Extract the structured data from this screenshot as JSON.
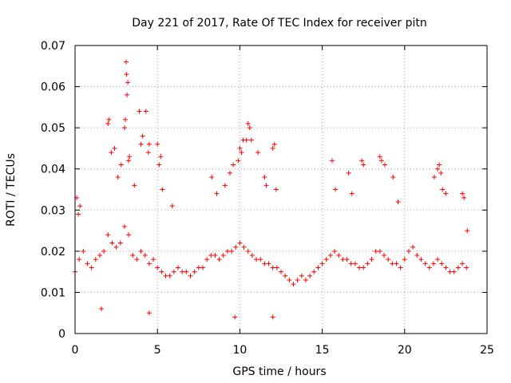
{
  "chart_data": {
    "type": "scatter",
    "title": "Day 221 of 2017, Rate Of TEC Index for receiver pitn",
    "xlabel": "GPS time / hours",
    "ylabel": "ROTI / TECUs",
    "xlim": [
      0,
      25
    ],
    "ylim": [
      0,
      0.07
    ],
    "x_ticks": [
      "0",
      "5",
      "10",
      "15",
      "20",
      "25"
    ],
    "y_ticks": [
      "0",
      "0.01",
      "0.02",
      "0.03",
      "0.04",
      "0.05",
      "0.06",
      "0.07"
    ],
    "grid": true,
    "legend": "none",
    "marker": "+",
    "color": "#ff0000",
    "series": [
      {
        "x": [
          0.0,
          0.25,
          0.5,
          0.75,
          1.0,
          1.25,
          1.5,
          1.75,
          2.0,
          2.25,
          2.5,
          2.75,
          3.0,
          3.25,
          3.5,
          3.75,
          4.0,
          4.25,
          4.5,
          4.75,
          5.0,
          5.25,
          5.5,
          5.75,
          6.0,
          6.25,
          6.5,
          6.75,
          7.0,
          7.25,
          7.5,
          7.75,
          8.0,
          8.25,
          8.5,
          8.75,
          9.0,
          9.25,
          9.5,
          9.75,
          10.0,
          10.25,
          10.5,
          10.75,
          11.0,
          11.25,
          11.5,
          11.75,
          12.0,
          12.25,
          12.5,
          12.75,
          13.0,
          13.25,
          13.5,
          13.75,
          14.0,
          14.25,
          14.5,
          14.75,
          15.0,
          15.25,
          15.5,
          15.75,
          16.0,
          16.25,
          16.5,
          16.75,
          17.0,
          17.25,
          17.5,
          17.75,
          18.0,
          18.25,
          18.5,
          18.75,
          19.0,
          19.25,
          19.5,
          19.75,
          20.0,
          20.25,
          20.5,
          20.75,
          21.0,
          21.25,
          21.5,
          21.75,
          22.0,
          22.25,
          22.5,
          22.75,
          23.0,
          23.25,
          23.5,
          23.75
        ],
        "y": [
          0.015,
          0.018,
          0.02,
          0.017,
          0.016,
          0.018,
          0.019,
          0.02,
          0.024,
          0.022,
          0.021,
          0.022,
          0.026,
          0.024,
          0.019,
          0.018,
          0.02,
          0.019,
          0.017,
          0.018,
          0.016,
          0.015,
          0.014,
          0.014,
          0.015,
          0.016,
          0.015,
          0.015,
          0.014,
          0.015,
          0.016,
          0.016,
          0.018,
          0.019,
          0.019,
          0.018,
          0.019,
          0.02,
          0.02,
          0.021,
          0.022,
          0.021,
          0.02,
          0.019,
          0.018,
          0.018,
          0.017,
          0.017,
          0.016,
          0.016,
          0.015,
          0.014,
          0.013,
          0.012,
          0.013,
          0.014,
          0.013,
          0.014,
          0.015,
          0.016,
          0.017,
          0.018,
          0.019,
          0.02,
          0.019,
          0.018,
          0.018,
          0.017,
          0.017,
          0.016,
          0.016,
          0.017,
          0.018,
          0.02,
          0.02,
          0.019,
          0.018,
          0.017,
          0.017,
          0.016,
          0.018,
          0.02,
          0.021,
          0.019,
          0.018,
          0.017,
          0.016,
          0.017,
          0.018,
          0.017,
          0.016,
          0.015,
          0.015,
          0.016,
          0.017,
          0.016
        ]
      },
      {
        "x": [
          0.1,
          0.2,
          0.3,
          2.0,
          2.05,
          2.2,
          2.4,
          2.6,
          2.8,
          3.0,
          3.05,
          3.1,
          3.12,
          3.15,
          3.2,
          3.25,
          3.3,
          3.6,
          3.9,
          4.0,
          4.1,
          4.3,
          4.45,
          4.5,
          5.0,
          5.1,
          5.2,
          5.3,
          5.9,
          8.3,
          8.6,
          9.1,
          9.4,
          9.6,
          9.9,
          10.0,
          10.1,
          10.2,
          10.4,
          10.5,
          10.6,
          10.7,
          11.1,
          11.5,
          11.6,
          12.0,
          12.1,
          12.2,
          15.6,
          15.8,
          16.6,
          16.8,
          17.4,
          17.5,
          18.5,
          18.6,
          18.8,
          19.3,
          19.6,
          21.8,
          22.0,
          22.1,
          22.2,
          22.3,
          22.5,
          23.5,
          23.6,
          23.8,
          9.7,
          12.0,
          1.6,
          4.5
        ],
        "y": [
          0.033,
          0.029,
          0.031,
          0.051,
          0.052,
          0.044,
          0.045,
          0.038,
          0.041,
          0.05,
          0.052,
          0.066,
          0.063,
          0.058,
          0.061,
          0.042,
          0.043,
          0.036,
          0.054,
          0.046,
          0.048,
          0.054,
          0.044,
          0.046,
          0.046,
          0.041,
          0.043,
          0.035,
          0.031,
          0.038,
          0.034,
          0.036,
          0.039,
          0.041,
          0.042,
          0.045,
          0.044,
          0.047,
          0.047,
          0.051,
          0.05,
          0.047,
          0.044,
          0.038,
          0.036,
          0.045,
          0.046,
          0.035,
          0.042,
          0.035,
          0.039,
          0.034,
          0.042,
          0.041,
          0.043,
          0.042,
          0.041,
          0.038,
          0.032,
          0.038,
          0.04,
          0.041,
          0.039,
          0.035,
          0.034,
          0.034,
          0.033,
          0.025,
          0.004,
          0.004,
          0.006,
          0.005
        ]
      }
    ]
  }
}
